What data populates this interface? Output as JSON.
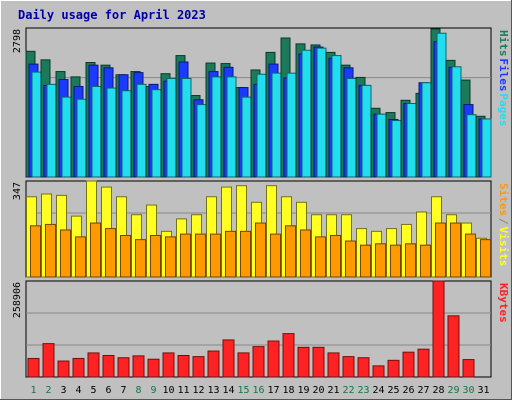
{
  "chart_data": {
    "type": "bar",
    "title": "Daily usage for April 2023",
    "categories": [
      "1",
      "2",
      "3",
      "4",
      "5",
      "6",
      "7",
      "8",
      "9",
      "10",
      "11",
      "12",
      "13",
      "14",
      "15",
      "16",
      "17",
      "18",
      "19",
      "20",
      "21",
      "22",
      "23",
      "24",
      "25",
      "26",
      "27",
      "28",
      "29",
      "30",
      "31"
    ],
    "weekend_days": [
      "1",
      "2",
      "8",
      "9",
      "15",
      "16",
      "22",
      "23",
      "29",
      "30"
    ],
    "panels": [
      {
        "name": "top",
        "max_label": "2798",
        "ymax": 2798,
        "series": [
          {
            "name": "Hits",
            "color": "#1a7a5a",
            "values": [
              2360,
              2200,
              1980,
              1880,
              2150,
              2100,
              1920,
              1980,
              1700,
              1940,
              2280,
              1530,
              2140,
              2130,
              1680,
              2010,
              2340,
              2610,
              2500,
              2480,
              2340,
              2100,
              1870,
              1290,
              1210,
              1440,
              1570,
              2780,
              2190,
              1820,
              1140
            ]
          },
          {
            "name": "Files",
            "color": "#1a3aff",
            "values": [
              2120,
              1720,
              1830,
              1700,
              2100,
              2050,
              1920,
              1960,
              1740,
              1800,
              2160,
              1450,
              1980,
              2060,
              1680,
              1740,
              2120,
              1860,
              2310,
              2440,
              2230,
              2050,
              1720,
              1180,
              1080,
              1380,
              1770,
              2540,
              2060,
              1360,
              1090
            ]
          },
          {
            "name": "Pages",
            "color": "#22ddee",
            "values": [
              1970,
              1740,
              1500,
              1460,
              1700,
              1670,
              1620,
              1740,
              1640,
              1850,
              1850,
              1360,
              1880,
              1880,
              1500,
              1930,
              1950,
              1950,
              2380,
              2420,
              2280,
              1850,
              1720,
              1180,
              1060,
              1380,
              1770,
              2700,
              2070,
              1170,
              1090
            ]
          }
        ],
        "legend": [
          {
            "label": "Hits",
            "color": "#1a7a5a"
          },
          {
            "label": "Files",
            "color": "#1a3aff"
          },
          {
            "label": "Pages",
            "color": "#22ddee"
          }
        ]
      },
      {
        "name": "middle",
        "max_label": "347",
        "ymax": 347,
        "series": [
          {
            "name": "Visits",
            "color": "#ffff22",
            "values": [
              290,
              300,
              295,
              220,
              347,
              325,
              290,
              225,
              260,
              165,
              210,
              225,
              290,
              325,
              330,
              270,
              330,
              290,
              270,
              225,
              225,
              225,
              175,
              165,
              175,
              190,
              235,
              290,
              225,
              195,
              140
            ]
          },
          {
            "name": "Sites",
            "color": "#ff9900",
            "values": [
              185,
              190,
              170,
              145,
              195,
              175,
              150,
              135,
              150,
              145,
              155,
              155,
              155,
              165,
              165,
              195,
              155,
              185,
              170,
              145,
              150,
              130,
              115,
              120,
              115,
              120,
              115,
              195,
              195,
              155,
              135
            ]
          }
        ],
        "legend": [
          {
            "label": "Sites",
            "color": "#ff9900"
          },
          {
            "label": "/",
            "color": "#888888"
          },
          {
            "label": "Visits",
            "color": "#ffff22"
          }
        ]
      },
      {
        "name": "bottom",
        "max_label": "258906",
        "ymax": 258906,
        "series": [
          {
            "name": "KBytes",
            "color": "#ff2222",
            "values": [
              50000,
              90000,
              43000,
              50000,
              65000,
              58000,
              52000,
              57000,
              48000,
              65000,
              58000,
              55000,
              70000,
              100000,
              65000,
              82000,
              97000,
              117000,
              80000,
              80000,
              65000,
              55000,
              52000,
              30000,
              45000,
              67000,
              75000,
              258906,
              165000,
              47000,
              0
            ]
          }
        ],
        "legend": [
          {
            "label": "KBytes",
            "color": "#ff2222"
          }
        ]
      }
    ]
  }
}
